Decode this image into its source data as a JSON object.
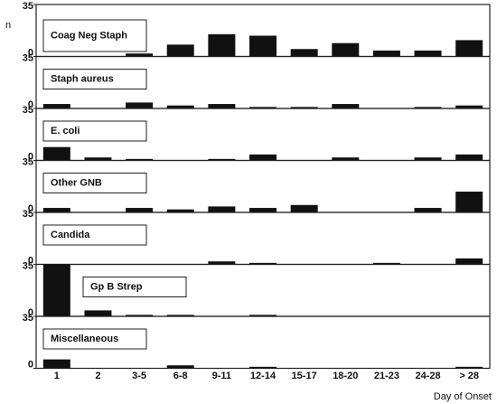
{
  "chart_data": {
    "type": "bar",
    "y_label": "n",
    "x_label": "Day of Onset",
    "categories": [
      "1",
      "2",
      "3-5",
      "6-8",
      "9-11",
      "12-14",
      "15-17",
      "18-20",
      "21-23",
      "24-28",
      "> 28"
    ],
    "ylim": [
      0,
      35
    ],
    "yticks": [
      0,
      35
    ],
    "series": [
      {
        "name": "Coag Neg Staph",
        "color": "#111111",
        "values": [
          0,
          0,
          2,
          8,
          15,
          14,
          5,
          9,
          4,
          4,
          11
        ]
      },
      {
        "name": "Staph aureus",
        "color": "#111111",
        "values": [
          3,
          0,
          4,
          2,
          3,
          1,
          1,
          3,
          0,
          1,
          2
        ]
      },
      {
        "name": "E. coli",
        "color": "#111111",
        "values": [
          9,
          2,
          1,
          0,
          1,
          4,
          0,
          2,
          0,
          2,
          4
        ]
      },
      {
        "name": "Other GNB",
        "color": "#111111",
        "values": [
          3,
          0,
          3,
          2,
          4,
          3,
          5,
          0,
          0,
          3,
          14
        ]
      },
      {
        "name": "Candida",
        "color": "#111111",
        "values": [
          0,
          0,
          0,
          0,
          2,
          1,
          0,
          0,
          1,
          0,
          4
        ]
      },
      {
        "name": "Gp B Strep",
        "color": "#111111",
        "values": [
          35,
          4,
          1,
          1,
          0,
          1,
          0,
          0,
          0,
          0,
          0
        ]
      },
      {
        "name": "Miscellaneous",
        "color": "#111111",
        "values": [
          6,
          0,
          0,
          2,
          0,
          1,
          0,
          0,
          0,
          0,
          1
        ]
      }
    ]
  }
}
